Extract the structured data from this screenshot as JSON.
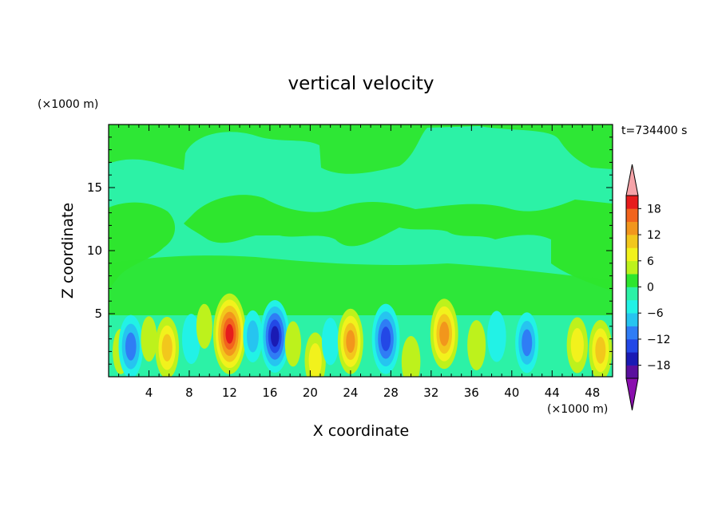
{
  "chart_data": {
    "type": "heatmap",
    "title": "vertical velocity",
    "xlabel": "X coordinate",
    "ylabel": "Z coordinate",
    "x_unit": "(×1000 m)",
    "y_unit": "(×1000 m)",
    "time_label": "t=734400 s",
    "xlim": [
      0,
      50
    ],
    "ylim": [
      0,
      20
    ],
    "xticks": [
      4,
      8,
      12,
      16,
      20,
      24,
      28,
      32,
      36,
      40,
      44,
      48
    ],
    "yticks": [
      5,
      10,
      15
    ],
    "colorbar": {
      "levels": [
        -21,
        -18,
        -15,
        -12,
        -9,
        -6,
        -3,
        0,
        3,
        6,
        9,
        12,
        15,
        18,
        21
      ],
      "tick_labels": [
        18,
        12,
        6,
        0,
        -6,
        -12,
        -18
      ],
      "colors": [
        "#5a0f9e",
        "#1a1ab4",
        "#2348e6",
        "#2f7df5",
        "#26c4f0",
        "#22f2e6",
        "#2cf2a6",
        "#2ee62e",
        "#bdf21c",
        "#f2f21c",
        "#f2c71c",
        "#f2961c",
        "#f2641c",
        "#e61c1c"
      ],
      "under_color": "#8a0fae",
      "over_color": "#f5a3a8"
    },
    "features": [
      {
        "x": 1.2,
        "z": 2.0,
        "w": 0.08
      },
      {
        "x": 2.2,
        "z": 2.4,
        "w": -0.45
      },
      {
        "x": 4.0,
        "z": 3.0,
        "w": 0.08
      },
      {
        "x": 5.8,
        "z": 2.3,
        "w": 0.42
      },
      {
        "x": 8.2,
        "z": 3.0,
        "w": -0.18
      },
      {
        "x": 9.5,
        "z": 4.0,
        "w": 0.07
      },
      {
        "x": 12.0,
        "z": 3.4,
        "w": 0.82
      },
      {
        "x": 14.3,
        "z": 3.2,
        "w": -0.22
      },
      {
        "x": 16.5,
        "z": 3.2,
        "w": -0.65
      },
      {
        "x": 18.3,
        "z": 2.6,
        "w": 0.08
      },
      {
        "x": 20.5,
        "z": 1.3,
        "w": 0.3
      },
      {
        "x": 22.0,
        "z": 2.8,
        "w": -0.12
      },
      {
        "x": 24.0,
        "z": 2.8,
        "w": 0.5
      },
      {
        "x": 27.5,
        "z": 3.0,
        "w": -0.6
      },
      {
        "x": 30.0,
        "z": 1.2,
        "w": 0.2
      },
      {
        "x": 33.3,
        "z": 3.4,
        "w": 0.6
      },
      {
        "x": 36.5,
        "z": 2.5,
        "w": 0.18
      },
      {
        "x": 38.5,
        "z": 3.2,
        "w": -0.2
      },
      {
        "x": 41.5,
        "z": 2.7,
        "w": -0.4
      },
      {
        "x": 46.5,
        "z": 2.5,
        "w": 0.3
      },
      {
        "x": 48.8,
        "z": 2.1,
        "w": 0.4
      }
    ],
    "grid": false,
    "legend": "colorbar right"
  }
}
